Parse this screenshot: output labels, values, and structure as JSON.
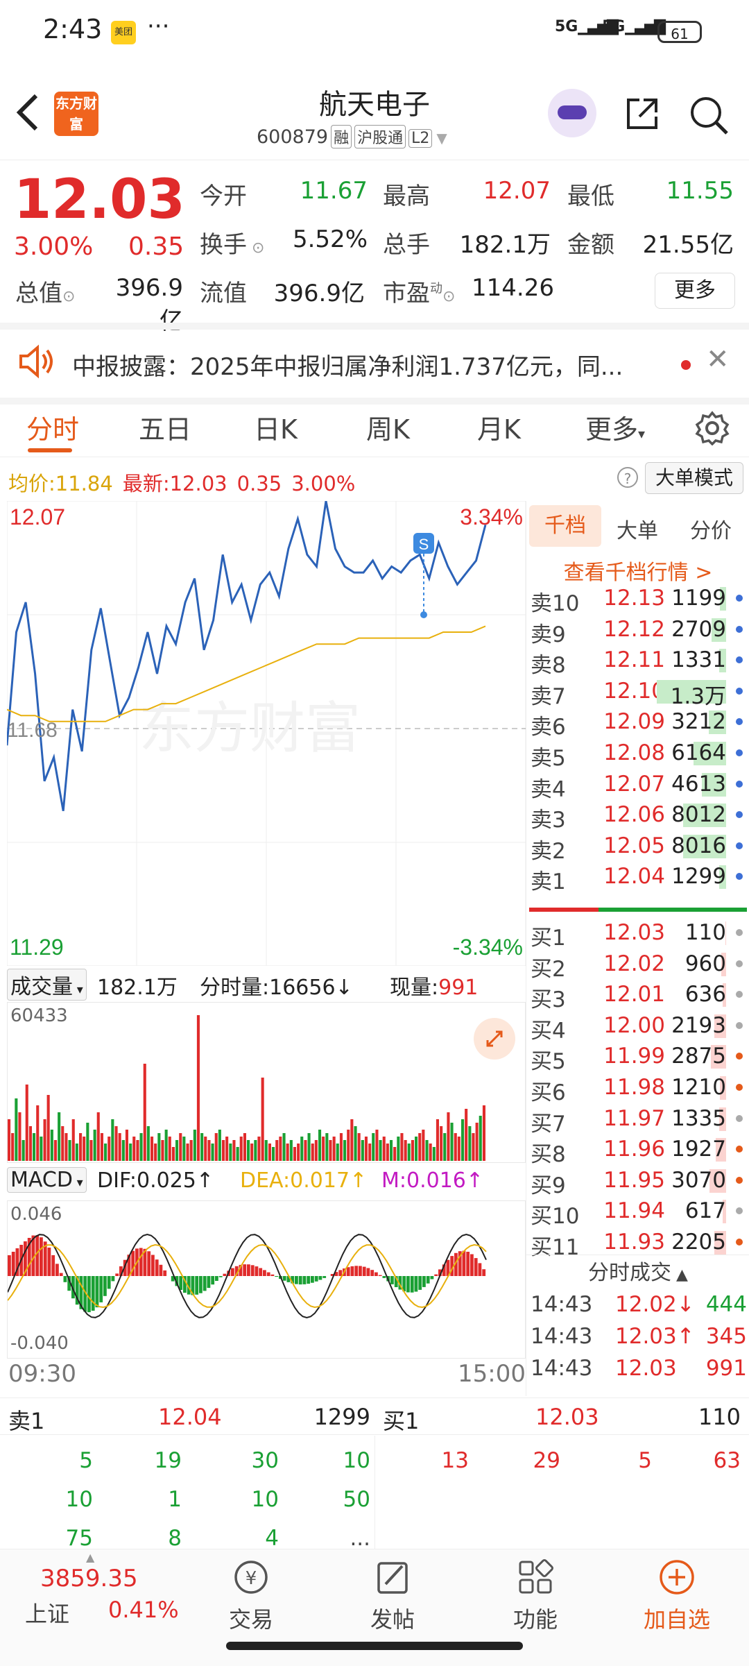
{
  "status_bar": {
    "time": "2:43",
    "app_badge": "美团",
    "dots": "···",
    "signal1": "5G",
    "signal2": "5G",
    "battery": "61"
  },
  "header": {
    "name": "航天电子",
    "code": "600879",
    "tags": [
      "融",
      "沪股通",
      "L2"
    ],
    "logo_text": "东方财富",
    "icons": [
      "back-arrow-icon",
      "robot-avatar-icon",
      "share-icon",
      "search-icon"
    ]
  },
  "quote": {
    "price": "12.03",
    "pct": "3.00%",
    "change": "0.35",
    "open_label": "今开",
    "open": "11.67",
    "high_label": "最高",
    "high": "12.07",
    "low_label": "最低",
    "low": "11.55",
    "turnover_label": "换手",
    "turnover": "5.52%",
    "volume_label": "总手",
    "volume": "182.1万",
    "amount_label": "金额",
    "amount": "21.55亿",
    "mcap_label": "总值",
    "mcap": "396.9亿",
    "float_label": "流值",
    "float": "396.9亿",
    "pe_label": "市盈",
    "pe_sup": "动",
    "pe": "114.26",
    "more": "更多"
  },
  "notice": {
    "text": "中报披露：2025年中报归属净利润1.737亿元，同..."
  },
  "tabs": [
    "分时",
    "五日",
    "日K",
    "周K",
    "月K",
    "更多"
  ],
  "avg_row": {
    "avg_label": "均价:",
    "avg": "11.84",
    "latest_label": "最新:",
    "latest": "12.03",
    "chg": "0.35",
    "pct": "3.00%",
    "help": "?",
    "big_order": "大单模式"
  },
  "chart_labels": {
    "y_top": "12.07",
    "y_mid": "11.68",
    "y_bottom": "11.29",
    "pct_top": "3.34%",
    "pct_bottom": "-3.34%",
    "marker": "S",
    "watermark": "东方财富"
  },
  "volume_panel": {
    "label": "成交量",
    "total": "182.1万",
    "fs_label": "分时量:16656",
    "now_label": "现量:",
    "now": "991",
    "max": "60433"
  },
  "macd_panel": {
    "label": "MACD",
    "dif": "DIF:0.025↑",
    "dea": "DEA:0.017↑",
    "m": "M:0.016↑",
    "top": "0.046",
    "bottom": "-0.040",
    "x_start": "09:30",
    "x_end": "15:00"
  },
  "chart_data": {
    "type": "line",
    "x_range": [
      "09:30",
      "15:00"
    ],
    "ylim": [
      11.29,
      12.07
    ],
    "series": [
      {
        "values": [
          11.66,
          11.85,
          11.9,
          11.78,
          11.6,
          11.64,
          11.55,
          11.72,
          11.65,
          11.82,
          11.89,
          11.8,
          11.71,
          11.74,
          11.79,
          11.85,
          11.78,
          11.86,
          11.83,
          11.9,
          11.94,
          11.82,
          11.87,
          11.98,
          11.9,
          11.93,
          11.87,
          11.93,
          11.95,
          11.91,
          11.99,
          12.04,
          11.98,
          11.96,
          12.07,
          11.99,
          11.96,
          11.95,
          11.95,
          11.97,
          11.94,
          11.96,
          11.95,
          11.97,
          11.98,
          11.94,
          12.0,
          11.96,
          11.93,
          11.95,
          11.97,
          12.03
        ]
      },
      {
        "values": [
          11.72,
          11.71,
          11.71,
          11.7,
          11.7,
          11.7,
          11.7,
          11.7,
          11.71,
          11.72,
          11.72,
          11.73,
          11.73,
          11.74,
          11.75,
          11.76,
          11.77,
          11.78,
          11.79,
          11.8,
          11.81,
          11.82,
          11.83,
          11.83,
          11.83,
          11.84,
          11.84,
          11.84,
          11.84,
          11.84,
          11.84,
          11.85,
          11.85,
          11.85,
          11.86
        ]
      }
    ]
  },
  "ask": [
    {
      "label": "卖10",
      "price": "12.13",
      "vol": "1199"
    },
    {
      "label": "卖9",
      "price": "12.12",
      "vol": "2709"
    },
    {
      "label": "卖8",
      "price": "12.11",
      "vol": "1331"
    },
    {
      "label": "卖7",
      "price": "12.10",
      "vol": "1.3万"
    },
    {
      "label": "卖6",
      "price": "12.09",
      "vol": "3212"
    },
    {
      "label": "卖5",
      "price": "12.08",
      "vol": "6164"
    },
    {
      "label": "卖4",
      "price": "12.07",
      "vol": "4613"
    },
    {
      "label": "卖3",
      "price": "12.06",
      "vol": "8012"
    },
    {
      "label": "卖2",
      "price": "12.05",
      "vol": "8016"
    },
    {
      "label": "卖1",
      "price": "12.04",
      "vol": "1299"
    }
  ],
  "bid": [
    {
      "label": "买1",
      "price": "12.03",
      "vol": "110"
    },
    {
      "label": "买2",
      "price": "12.02",
      "vol": "960"
    },
    {
      "label": "买3",
      "price": "12.01",
      "vol": "636"
    },
    {
      "label": "买4",
      "price": "12.00",
      "vol": "2193"
    },
    {
      "label": "买5",
      "price": "11.99",
      "vol": "2875"
    },
    {
      "label": "买6",
      "price": "11.98",
      "vol": "1210"
    },
    {
      "label": "买7",
      "price": "11.97",
      "vol": "1335"
    },
    {
      "label": "买8",
      "price": "11.96",
      "vol": "1927"
    },
    {
      "label": "买9",
      "price": "11.95",
      "vol": "3070"
    },
    {
      "label": "买10",
      "price": "11.94",
      "vol": "617"
    },
    {
      "label": "买11",
      "price": "11.93",
      "vol": "2205"
    }
  ],
  "book_tabs": [
    "千档",
    "大单",
    "分价"
  ],
  "book_link": "查看千档行情 >",
  "ticks_title": "分时成交",
  "ticks": [
    {
      "time": "14:43",
      "price": "12.02",
      "arrow": "↓",
      "vol": "444"
    },
    {
      "time": "14:43",
      "price": "12.03",
      "arrow": "↑",
      "vol": "345"
    },
    {
      "time": "14:43",
      "price": "12.03",
      "arrow": "",
      "vol": "991"
    }
  ],
  "queue": {
    "sell_label": "卖1",
    "sell_price": "12.04",
    "sell_total": "1299",
    "buy_label": "买1",
    "buy_price": "12.03",
    "buy_total": "110",
    "sell_rows": [
      [
        "5",
        "19",
        "30",
        "10"
      ],
      [
        "10",
        "1",
        "10",
        "50"
      ],
      [
        "75",
        "8",
        "4",
        "..."
      ]
    ],
    "buy_rows": [
      [
        "13",
        "29",
        "5",
        "63"
      ]
    ]
  },
  "bottom_nav": {
    "index_value": "3859.35",
    "index_name": "上证",
    "index_pct": "0.41%",
    "items": [
      "交易",
      "发帖",
      "功能",
      "加自选"
    ]
  }
}
